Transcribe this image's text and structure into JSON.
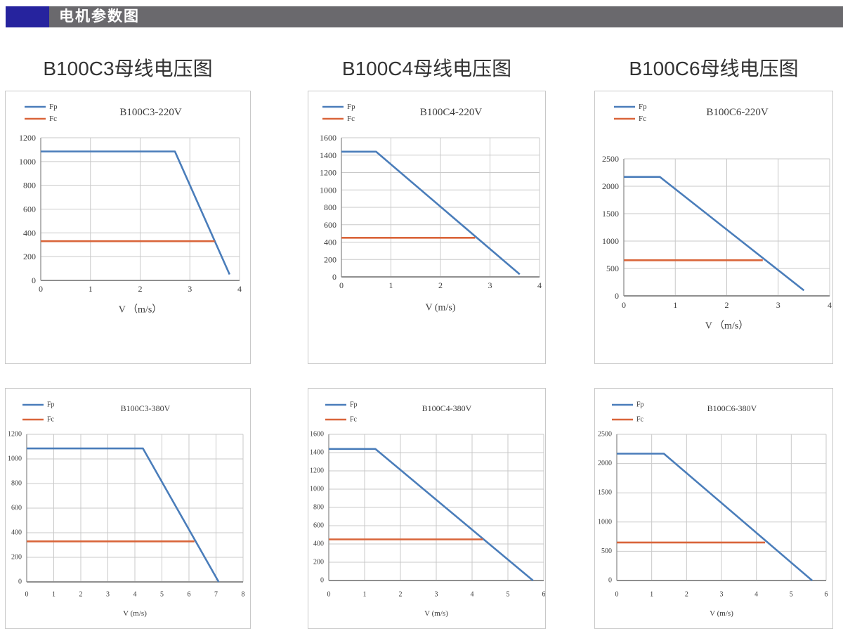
{
  "header": {
    "title": "电机参数图",
    "bar_color": "#6a696d",
    "accent_color": "#26239e",
    "text_color": "#ffffff"
  },
  "colors": {
    "fp_line": "#4a7dba",
    "fc_line": "#d9653a",
    "grid": "#c9c9c9",
    "axis": "#8f8f8f",
    "text": "#3c3c3c",
    "box_border": "#c8c8c8"
  },
  "chart_data": [
    {
      "type": "line",
      "heading": "B100C3母线电压图",
      "title": "B100C3-220V",
      "xlabel": "V （m/s）",
      "ylabel": "",
      "xlim": [
        0,
        4
      ],
      "ylim": [
        0,
        1200
      ],
      "xticks": [
        0,
        1,
        2,
        3,
        4
      ],
      "yticks": [
        0,
        200,
        400,
        600,
        800,
        1000,
        1200
      ],
      "grid": true,
      "legend_position": "top-left",
      "series": [
        {
          "name": "Fp",
          "color_key": "fp_line",
          "points": [
            [
              0,
              1085
            ],
            [
              2.7,
              1085
            ],
            [
              3.8,
              50
            ]
          ]
        },
        {
          "name": "Fc",
          "color_key": "fc_line",
          "points": [
            [
              0,
              330
            ],
            [
              3.5,
              330
            ]
          ]
        }
      ]
    },
    {
      "type": "line",
      "heading": "B100C4母线电压图",
      "title": "B100C4-220V",
      "xlabel": "V (m/s)",
      "ylabel": "",
      "xlim": [
        0,
        4
      ],
      "ylim": [
        0,
        1600
      ],
      "xticks": [
        0,
        1,
        2,
        3,
        4
      ],
      "yticks": [
        0,
        200,
        400,
        600,
        800,
        1000,
        1200,
        1400,
        1600
      ],
      "grid": true,
      "legend_position": "top-left",
      "series": [
        {
          "name": "Fp",
          "color_key": "fp_line",
          "points": [
            [
              0,
              1440
            ],
            [
              0.7,
              1440
            ],
            [
              3.6,
              30
            ]
          ]
        },
        {
          "name": "Fc",
          "color_key": "fc_line",
          "points": [
            [
              0,
              450
            ],
            [
              2.7,
              450
            ]
          ]
        }
      ]
    },
    {
      "type": "line",
      "heading": "B100C6母线电压图",
      "title": "B100C6-220V",
      "xlabel": "V （m/s）",
      "ylabel": "",
      "xlim": [
        0,
        4
      ],
      "ylim": [
        0,
        2500
      ],
      "xticks": [
        0,
        1,
        2,
        3,
        4
      ],
      "yticks": [
        0,
        500,
        1000,
        1500,
        2000,
        2500
      ],
      "grid": true,
      "legend_position": "top-left",
      "series": [
        {
          "name": "Fp",
          "color_key": "fp_line",
          "points": [
            [
              0,
              2170
            ],
            [
              0.7,
              2170
            ],
            [
              3.5,
              100
            ]
          ]
        },
        {
          "name": "Fc",
          "color_key": "fc_line",
          "points": [
            [
              0,
              650
            ],
            [
              2.7,
              650
            ]
          ]
        }
      ]
    },
    {
      "type": "line",
      "heading": "",
      "title": "B100C3-380V",
      "xlabel": "V (m/s)",
      "ylabel": "",
      "xlim": [
        0,
        8
      ],
      "ylim": [
        0,
        1200
      ],
      "xticks": [
        0,
        1,
        2,
        3,
        4,
        5,
        6,
        7,
        8
      ],
      "yticks": [
        0,
        200,
        400,
        600,
        800,
        1000,
        1200
      ],
      "grid": true,
      "legend_position": "top-left",
      "series": [
        {
          "name": "Fp",
          "color_key": "fp_line",
          "points": [
            [
              0,
              1085
            ],
            [
              4.3,
              1085
            ],
            [
              7.1,
              0
            ]
          ]
        },
        {
          "name": "Fc",
          "color_key": "fc_line",
          "points": [
            [
              0,
              330
            ],
            [
              6.2,
              330
            ]
          ]
        }
      ]
    },
    {
      "type": "line",
      "heading": "",
      "title": "B100C4-380V",
      "xlabel": "V (m/s)",
      "ylabel": "",
      "xlim": [
        0,
        6
      ],
      "ylim": [
        0,
        1600
      ],
      "xticks": [
        0,
        1,
        2,
        3,
        4,
        5,
        6
      ],
      "yticks": [
        0,
        200,
        400,
        600,
        800,
        1000,
        1200,
        1400,
        1600
      ],
      "grid": true,
      "legend_position": "top-left",
      "series": [
        {
          "name": "Fp",
          "color_key": "fp_line",
          "points": [
            [
              0,
              1440
            ],
            [
              1.3,
              1440
            ],
            [
              5.7,
              0
            ]
          ]
        },
        {
          "name": "Fc",
          "color_key": "fc_line",
          "points": [
            [
              0,
              450
            ],
            [
              4.3,
              450
            ]
          ]
        }
      ]
    },
    {
      "type": "line",
      "heading": "",
      "title": "B100C6-380V",
      "xlabel": "V (m/s)",
      "ylabel": "",
      "xlim": [
        0,
        6
      ],
      "ylim": [
        0,
        2500
      ],
      "xticks": [
        0,
        1,
        2,
        3,
        4,
        5,
        6
      ],
      "yticks": [
        0,
        500,
        1000,
        1500,
        2000,
        2500
      ],
      "grid": true,
      "legend_position": "top-left",
      "series": [
        {
          "name": "Fp",
          "color_key": "fp_line",
          "points": [
            [
              0,
              2170
            ],
            [
              1.35,
              2170
            ],
            [
              5.6,
              0
            ]
          ]
        },
        {
          "name": "Fc",
          "color_key": "fc_line",
          "points": [
            [
              0,
              650
            ],
            [
              4.25,
              650
            ]
          ]
        }
      ]
    }
  ]
}
